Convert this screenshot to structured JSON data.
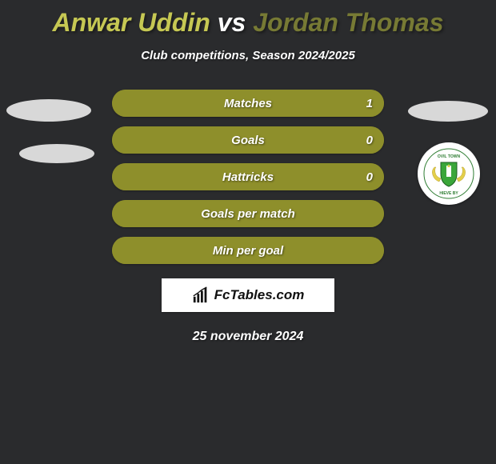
{
  "title": {
    "player1": "Anwar Uddin",
    "vs": "vs",
    "player2": "Jordan Thomas"
  },
  "subtitle": "Club competitions, Season 2024/2025",
  "colors": {
    "player1_accent": "#c6c853",
    "player2_accent": "#777a34",
    "bar_bg": "#8e8f2b",
    "bar_fill": "#8e8f2b",
    "page_bg": "#2a2b2d",
    "text": "#ffffff",
    "brand_bg": "#ffffff",
    "crest_green": "#3aa63a",
    "crest_yellow": "#e3cf4a"
  },
  "stats": [
    {
      "label": "Matches",
      "right_value": "1",
      "right_pct": 100
    },
    {
      "label": "Goals",
      "right_value": "0",
      "right_pct": 100
    },
    {
      "label": "Hattricks",
      "right_value": "0",
      "right_pct": 100
    },
    {
      "label": "Goals per match",
      "right_value": "",
      "right_pct": 100
    },
    {
      "label": "Min per goal",
      "right_value": "",
      "right_pct": 100
    }
  ],
  "brand": {
    "text": "FcTables.com"
  },
  "date": "25 november 2024",
  "crest_text": {
    "top": "OVIL TOWN",
    "bottom": "HIEVE BY"
  }
}
